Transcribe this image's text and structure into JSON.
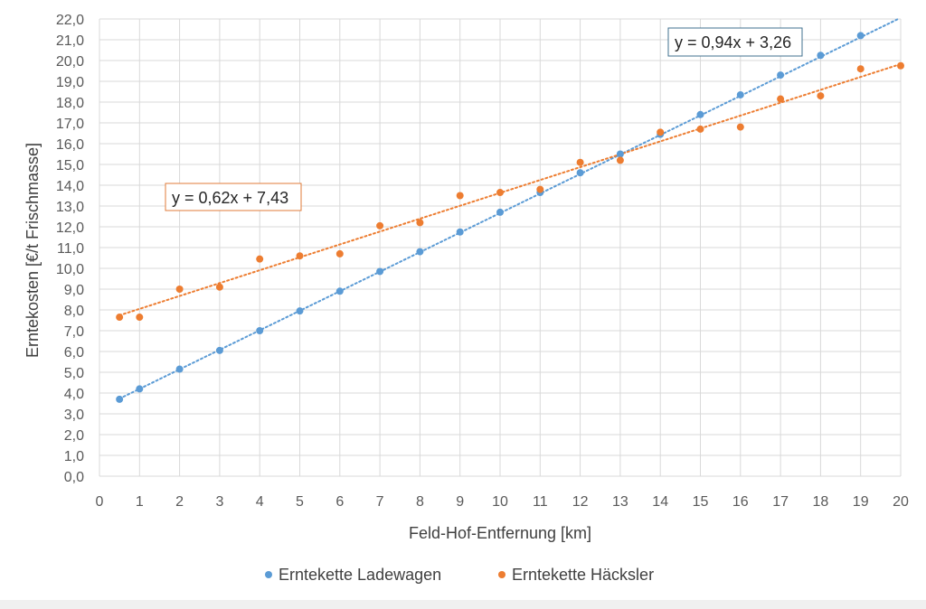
{
  "chart_data": {
    "type": "scatter",
    "title": "",
    "xlabel": "Feld-Hof-Entfernung [km]",
    "ylabel": "Erntekosten [€/t Frischmasse]",
    "xlim": [
      0,
      20
    ],
    "ylim": [
      0,
      22
    ],
    "x_ticks": [
      0,
      1,
      2,
      3,
      4,
      5,
      6,
      7,
      8,
      9,
      10,
      11,
      12,
      13,
      14,
      15,
      16,
      17,
      18,
      19,
      20
    ],
    "y_ticks": [
      "0,0",
      "1,0",
      "2,0",
      "3,0",
      "4,0",
      "5,0",
      "6,0",
      "7,0",
      "8,0",
      "9,0",
      "10,0",
      "11,0",
      "12,0",
      "13,0",
      "14,0",
      "15,0",
      "16,0",
      "17,0",
      "18,0",
      "19,0",
      "20,0",
      "21,0",
      "22,0"
    ],
    "grid": true,
    "legend_position": "bottom",
    "series": [
      {
        "name": "Erntekette Ladewagen",
        "color": "#5b9bd5",
        "x": [
          0.5,
          1,
          2,
          3,
          4,
          5,
          6,
          7,
          8,
          9,
          10,
          11,
          12,
          13,
          14,
          15,
          16,
          17,
          18,
          19
        ],
        "y": [
          3.7,
          4.2,
          5.15,
          6.05,
          7.0,
          7.95,
          8.9,
          9.85,
          10.8,
          11.75,
          12.7,
          13.65,
          14.6,
          15.5,
          16.45,
          17.4,
          18.35,
          19.3,
          20.25,
          21.2
        ],
        "trendline": {
          "slope": 0.94,
          "intercept": 3.26,
          "x_range": [
            0.5,
            20
          ],
          "equation": "y = 0,94x + 3,26"
        }
      },
      {
        "name": "Erntekette Häcksler",
        "color": "#ed7d31",
        "x": [
          0.5,
          1,
          2,
          3,
          4,
          5,
          6,
          7,
          8,
          9,
          10,
          11,
          12,
          13,
          14,
          15,
          16,
          17,
          18,
          19,
          20
        ],
        "y": [
          7.65,
          7.65,
          9.0,
          9.1,
          10.45,
          10.6,
          10.7,
          12.05,
          12.2,
          13.5,
          13.65,
          13.8,
          15.1,
          15.2,
          16.55,
          16.7,
          16.8,
          18.15,
          18.3,
          19.6,
          19.75
        ],
        "trendline": {
          "slope": 0.62,
          "intercept": 7.43,
          "x_range": [
            0.5,
            20
          ],
          "equation": "y = 0,62x + 7,43"
        }
      }
    ]
  }
}
